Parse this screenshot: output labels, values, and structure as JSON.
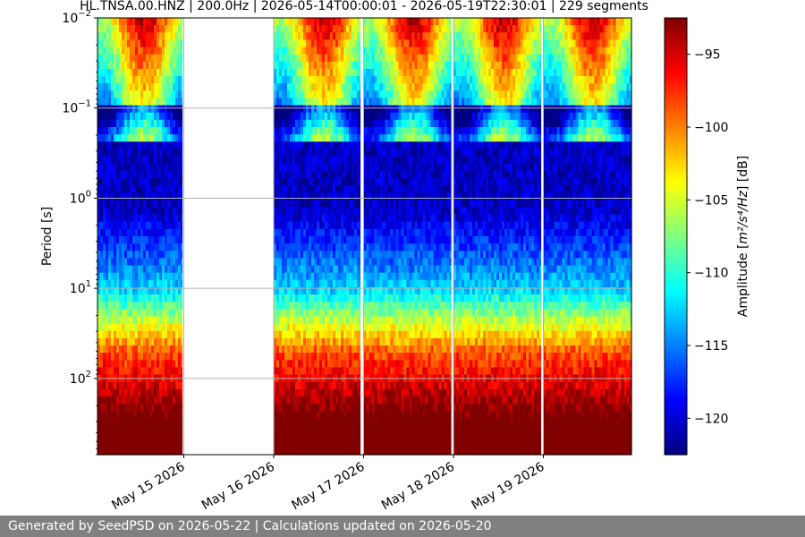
{
  "chart_data": {
    "type": "heatmap",
    "title": "HL.TNSA.00.HNZ | 200.0Hz | 2026-05-14T00:00:01 - 2026-05-19T22:30:01 | 229 segments",
    "ylabel": "Period [s]",
    "y_scale": "log",
    "y_inverted": true,
    "ylim": [
      0.01,
      700
    ],
    "y_ticks": [
      {
        "value": 0.01,
        "base": "10",
        "exp": "−2"
      },
      {
        "value": 0.1,
        "base": "10",
        "exp": "−1"
      },
      {
        "value": 1,
        "base": "10",
        "exp": "0"
      },
      {
        "value": 10,
        "base": "10",
        "exp": "1"
      },
      {
        "value": 100,
        "base": "10",
        "exp": "2"
      }
    ],
    "grid": true,
    "x_ticks": [
      "May 15 2026",
      "May 16 2026",
      "May 17 2026",
      "May 18 2026",
      "May 19 2026"
    ],
    "x_tick_days": [
      1,
      2,
      3,
      4,
      5
    ],
    "x_start_day": 0.04,
    "x_end_day": 5.98,
    "data_segments_days": [
      [
        0.04,
        0.98
      ],
      [
        2.0,
        2.96
      ],
      [
        3.0,
        3.97
      ],
      [
        4.0,
        4.97
      ],
      [
        5.0,
        5.98
      ]
    ],
    "colorbar": {
      "label_prefix": "Amplitude [",
      "label_units": "m²/s⁴/Hz",
      "label_suffix": "] [dB]",
      "min": -122.5,
      "max": -92.5,
      "ticks": [
        -95,
        -100,
        -105,
        -110,
        -115,
        -120
      ],
      "tick_labels": [
        "−95",
        "−100",
        "−105",
        "−110",
        "−115",
        "−120"
      ],
      "colormap": "jet"
    }
  },
  "footer": {
    "text": "Generated by SeedPSD on 2026-05-22 | Calculations updated on 2026-05-20"
  }
}
